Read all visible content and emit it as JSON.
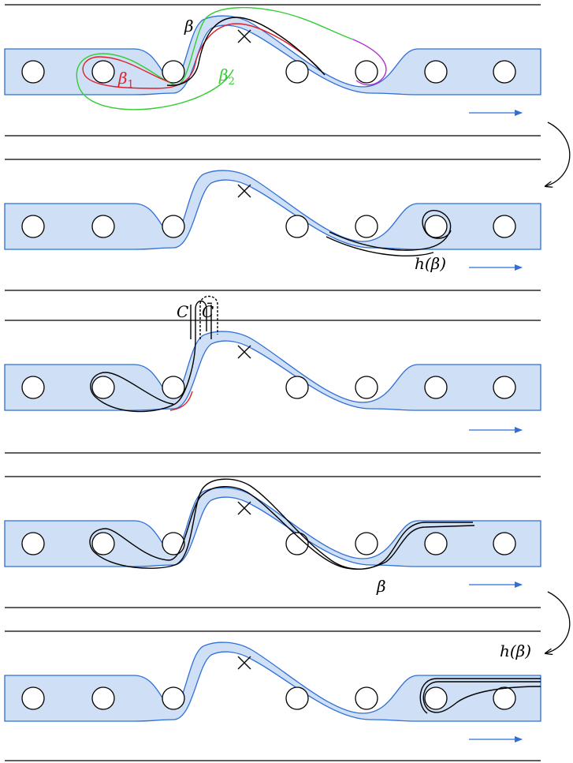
{
  "colors": {
    "band_fill": "#cfe0f6",
    "band_stroke": "#2f6fd6",
    "beta": "#000000",
    "beta1": "#e0202a",
    "beta2": "#33cc33",
    "beta_tail": "#b030d0"
  },
  "panels": [
    {
      "labels": {
        "beta": "β",
        "beta1": "β",
        "beta1_sub": "1",
        "beta2": "β",
        "beta2_sub": "2"
      }
    },
    {
      "labels": {
        "h_beta": "h(β)"
      }
    },
    {
      "labels": {
        "c": "C",
        "c_bar": "C̄"
      }
    },
    {
      "labels": {
        "beta": "β"
      }
    },
    {
      "labels": {
        "h_beta": "h(β)"
      }
    }
  ],
  "icons": {
    "puncture": "cross-icon",
    "transition": "curved-arrow-icon",
    "direction": "right-arrow-icon"
  }
}
